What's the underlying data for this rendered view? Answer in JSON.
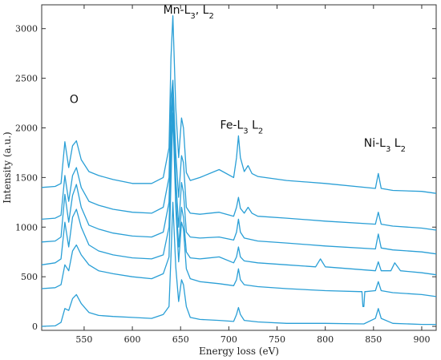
{
  "chart_data": {
    "type": "line",
    "title": "",
    "xlabel": "Energy loss (eV)",
    "ylabel": "Intensity (a.u.)",
    "xlim": [
      506,
      915
    ],
    "ylim": [
      -40,
      3240
    ],
    "xticks": [
      550,
      600,
      650,
      700,
      750,
      800,
      850,
      900
    ],
    "yticks": [
      0,
      500,
      1000,
      1500,
      2000,
      2500,
      3000
    ],
    "grid": false,
    "legend": "none",
    "line_color": "#2a9fd6",
    "annotations": [
      {
        "main": "O",
        "sub": "",
        "x": 535,
        "y": 2250
      },
      {
        "main": "Mn-L",
        "sub": "3",
        "mid": ", L",
        "sub2": "2",
        "x": 632,
        "y": 3150
      },
      {
        "main": "Fe-L",
        "sub": "3",
        "mid": " L",
        "sub2": "2",
        "x": 691,
        "y": 1990
      },
      {
        "main": "Ni-L",
        "sub": "3",
        "mid": " L",
        "sub2": "2",
        "x": 840,
        "y": 1810
      }
    ],
    "series": [
      {
        "x": [
          506,
          520,
          526,
          530,
          534,
          538,
          542,
          547,
          555,
          565,
          580,
          600,
          620,
          632,
          638,
          640,
          642,
          645,
          648,
          651,
          653,
          656,
          660,
          670,
          690,
          705,
          708,
          710,
          712,
          716,
          730,
          760,
          800,
          840,
          852,
          855,
          858,
          870,
          900,
          915
        ],
        "y": [
          0,
          5,
          40,
          180,
          160,
          280,
          320,
          230,
          140,
          110,
          100,
          90,
          80,
          120,
          200,
          700,
          1250,
          600,
          250,
          470,
          420,
          200,
          90,
          70,
          60,
          50,
          120,
          190,
          120,
          60,
          45,
          30,
          30,
          25,
          80,
          180,
          80,
          30,
          20,
          20
        ]
      },
      {
        "x": [
          506,
          520,
          526,
          530,
          534,
          538,
          542,
          547,
          555,
          565,
          580,
          600,
          620,
          632,
          638,
          640,
          642,
          645,
          648,
          651,
          653,
          656,
          660,
          670,
          690,
          705,
          708,
          710,
          712,
          716,
          730,
          760,
          800,
          835,
          838,
          839,
          840,
          841,
          842,
          852,
          855,
          858,
          870,
          900,
          915
        ],
        "y": [
          380,
          390,
          420,
          620,
          560,
          760,
          820,
          720,
          620,
          560,
          530,
          500,
          480,
          530,
          700,
          1450,
          2150,
          1200,
          650,
          1050,
          980,
          580,
          480,
          450,
          430,
          410,
          470,
          580,
          470,
          420,
          400,
          380,
          360,
          350,
          350,
          200,
          200,
          350,
          350,
          360,
          450,
          360,
          340,
          320,
          300
        ]
      },
      {
        "x": [
          506,
          520,
          526,
          530,
          534,
          538,
          542,
          547,
          555,
          565,
          580,
          600,
          620,
          632,
          638,
          640,
          642,
          645,
          648,
          651,
          653,
          656,
          660,
          670,
          690,
          705,
          708,
          710,
          712,
          716,
          730,
          760,
          790,
          795,
          800,
          852,
          855,
          858,
          868,
          872,
          878,
          900,
          915
        ],
        "y": [
          620,
          640,
          680,
          1050,
          800,
          1100,
          1180,
          1000,
          820,
          760,
          720,
          690,
          680,
          720,
          1000,
          1800,
          2350,
          1300,
          800,
          1200,
          1100,
          750,
          690,
          680,
          700,
          640,
          700,
          800,
          700,
          660,
          640,
          620,
          600,
          680,
          600,
          560,
          650,
          560,
          560,
          640,
          560,
          540,
          520
        ]
      },
      {
        "x": [
          506,
          520,
          526,
          530,
          534,
          538,
          542,
          547,
          555,
          565,
          580,
          600,
          620,
          632,
          638,
          640,
          642,
          645,
          648,
          651,
          653,
          656,
          660,
          670,
          690,
          705,
          708,
          710,
          712,
          716,
          730,
          760,
          800,
          852,
          855,
          858,
          870,
          900,
          915
        ],
        "y": [
          850,
          860,
          900,
          1330,
          1050,
          1320,
          1430,
          1200,
          1020,
          980,
          940,
          910,
          900,
          950,
          1250,
          2050,
          2450,
          1500,
          1000,
          1450,
          1350,
          950,
          900,
          890,
          900,
          870,
          950,
          1080,
          950,
          890,
          860,
          840,
          810,
          780,
          930,
          790,
          770,
          750,
          730
        ]
      },
      {
        "x": [
          506,
          520,
          526,
          530,
          534,
          538,
          542,
          547,
          555,
          565,
          580,
          600,
          620,
          632,
          638,
          640,
          642,
          645,
          648,
          651,
          653,
          656,
          660,
          670,
          690,
          705,
          708,
          710,
          712,
          716,
          720,
          724,
          730,
          760,
          800,
          852,
          855,
          858,
          870,
          900,
          915
        ],
        "y": [
          1080,
          1090,
          1120,
          1520,
          1260,
          1520,
          1600,
          1400,
          1260,
          1220,
          1180,
          1150,
          1140,
          1200,
          1500,
          2300,
          2480,
          1750,
          1300,
          1720,
          1650,
          1200,
          1140,
          1130,
          1150,
          1110,
          1200,
          1300,
          1190,
          1140,
          1200,
          1140,
          1110,
          1090,
          1060,
          1030,
          1150,
          1030,
          1010,
          990,
          970
        ]
      },
      {
        "x": [
          506,
          520,
          526,
          530,
          534,
          538,
          542,
          547,
          555,
          565,
          580,
          600,
          620,
          632,
          638,
          640,
          642,
          645,
          648,
          651,
          653,
          656,
          660,
          670,
          690,
          705,
          708,
          710,
          712,
          716,
          720,
          724,
          730,
          760,
          800,
          852,
          855,
          858,
          870,
          900,
          915
        ],
        "y": [
          1400,
          1410,
          1440,
          1860,
          1600,
          1820,
          1870,
          1680,
          1560,
          1520,
          1480,
          1440,
          1440,
          1500,
          1800,
          2700,
          3130,
          2200,
          1700,
          2100,
          2000,
          1550,
          1470,
          1500,
          1580,
          1500,
          1700,
          1920,
          1700,
          1560,
          1620,
          1540,
          1510,
          1470,
          1440,
          1390,
          1540,
          1390,
          1370,
          1360,
          1340
        ]
      }
    ]
  }
}
